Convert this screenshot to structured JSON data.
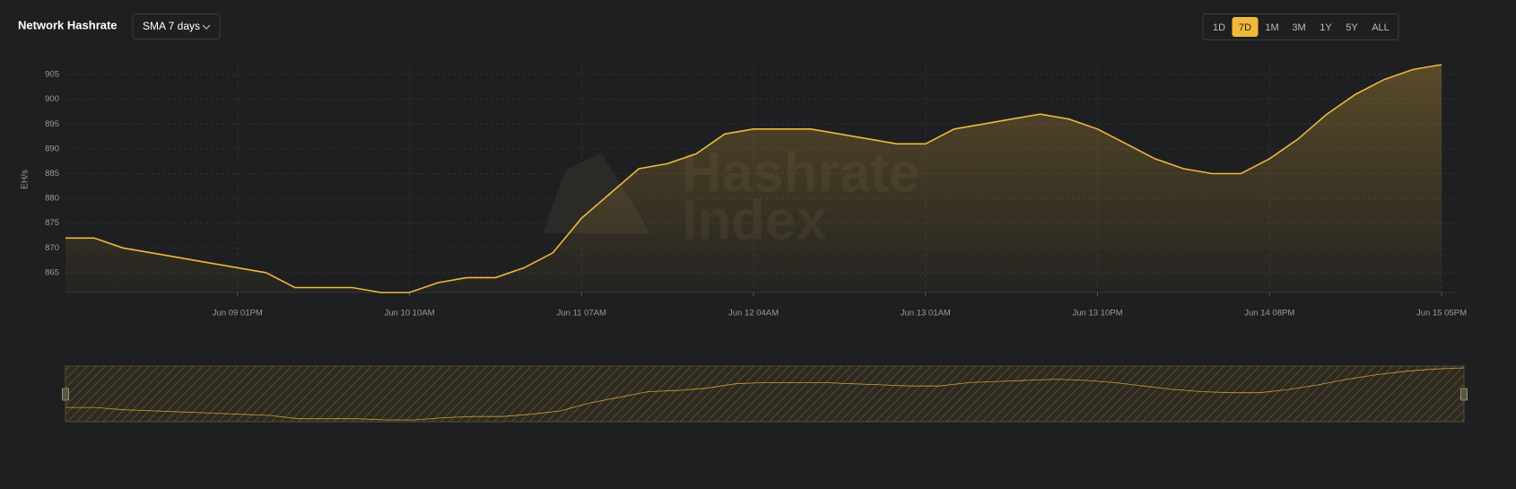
{
  "header": {
    "title": "Network Hashrate",
    "dropdown": "SMA 7 days",
    "ranges": [
      "1D",
      "7D",
      "1M",
      "3M",
      "1Y",
      "5Y",
      "ALL"
    ],
    "active_range": 1
  },
  "chart_data": {
    "type": "area",
    "y_label": "EH/s",
    "watermark": [
      "Hashrate",
      "Index"
    ],
    "categories": [
      null,
      null,
      null,
      null,
      null,
      null,
      "Jun 09 01PM",
      null,
      null,
      null,
      null,
      null,
      "Jun 10 10AM",
      null,
      null,
      null,
      null,
      null,
      "Jun 11 07AM",
      null,
      null,
      null,
      null,
      null,
      "Jun 12 04AM",
      null,
      null,
      null,
      null,
      null,
      "Jun 13 01AM",
      null,
      null,
      null,
      null,
      null,
      "Jun 13 10PM",
      null,
      null,
      null,
      null,
      null,
      "Jun 14 08PM",
      null,
      null,
      null,
      null,
      null,
      "Jun 15 05PM"
    ],
    "values": [
      872,
      872,
      870,
      869,
      868,
      867,
      866,
      865,
      862,
      862,
      862,
      861,
      861,
      863,
      864,
      864,
      866,
      869,
      876,
      881,
      886,
      887,
      889,
      893,
      894,
      894,
      894,
      893,
      892,
      891,
      891,
      894,
      895,
      896,
      897,
      896,
      894,
      891,
      888,
      886,
      885,
      885,
      888,
      892,
      897,
      901,
      904,
      906,
      907
    ],
    "color": "#f0b93a",
    "ylim": [
      861,
      907
    ],
    "yticks": [
      865,
      870,
      875,
      880,
      885,
      890,
      895,
      900,
      905
    ],
    "grid": true,
    "navigator": true
  }
}
